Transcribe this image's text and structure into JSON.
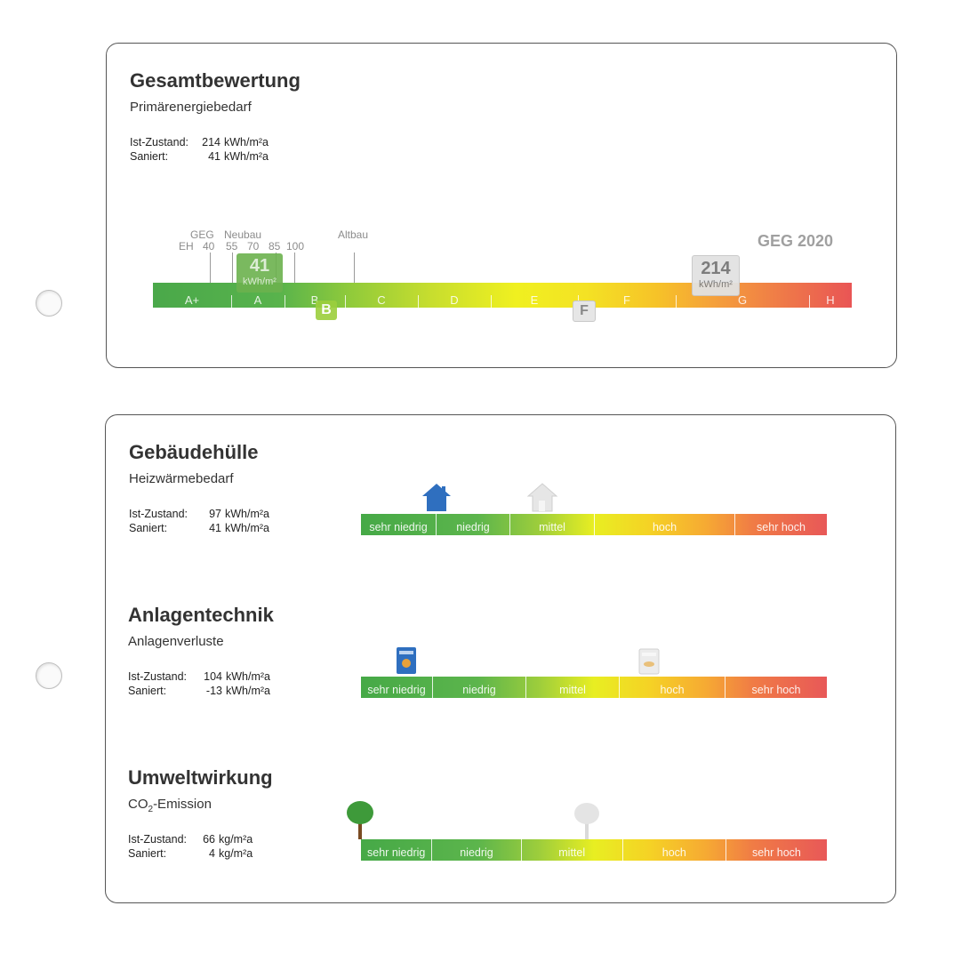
{
  "gesamt": {
    "title": "Gesamtbewertung",
    "subtitle": "Primärenergiebedarf",
    "rows": [
      {
        "label": "Ist-Zustand:",
        "value": "214",
        "unit": "kWh/m²a"
      },
      {
        "label": "Saniert:",
        "value": "41",
        "unit": "kWh/m²a"
      }
    ],
    "scale": {
      "geg_label": "GEG",
      "neubau_label": "Neubau",
      "eh_label": "EH",
      "eh_values": [
        "40",
        "55",
        "70",
        "85",
        "100"
      ],
      "altbau_label": "Altbau",
      "standard_label": "GEG 2020"
    },
    "classes": [
      "A+",
      "A",
      "B",
      "C",
      "D",
      "E",
      "F",
      "G",
      "H"
    ],
    "marker_saniert": {
      "value": "41",
      "unit": "kWh/m²",
      "class": "B"
    },
    "marker_ist": {
      "value": "214",
      "unit": "kWh/m²",
      "class": "F"
    },
    "colors": {
      "good": "#4aa84a",
      "medium": "#f0f020",
      "bad": "#e95555"
    }
  },
  "gebaeudehuelle": {
    "title": "Gebäudehülle",
    "subtitle": "Heizwärmebedarf",
    "rows": [
      {
        "label": "Ist-Zustand:",
        "value": "97",
        "unit": "kWh/m²a"
      },
      {
        "label": "Saniert:",
        "value": "41",
        "unit": "kWh/m²a"
      }
    ],
    "segments": [
      "sehr niedrig",
      "niedrig",
      "mittel",
      "hoch",
      "sehr hoch"
    ],
    "icon_saniert": "house-icon",
    "icon_ist": "house-icon"
  },
  "anlagentechnik": {
    "title": "Anlagentechnik",
    "subtitle": "Anlagenverluste",
    "rows": [
      {
        "label": "Ist-Zustand:",
        "value": "104",
        "unit": "kWh/m²a"
      },
      {
        "label": "Saniert:",
        "value": "-13",
        "unit": "kWh/m²a"
      }
    ],
    "segments": [
      "sehr niedrig",
      "niedrig",
      "mittel",
      "hoch",
      "sehr hoch"
    ],
    "icon_saniert": "boiler-icon",
    "icon_ist": "boiler-icon"
  },
  "umweltwirkung": {
    "title": "Umweltwirkung",
    "subtitle_main": "CO",
    "subtitle_sub": "2",
    "subtitle_rest": "-Emission",
    "rows": [
      {
        "label": "Ist-Zustand:",
        "value": "66",
        "unit": "kg/m²a"
      },
      {
        "label": "Saniert:",
        "value": "4",
        "unit": "kg/m²a"
      }
    ],
    "segments": [
      "sehr niedrig",
      "niedrig",
      "mittel",
      "hoch",
      "sehr hoch"
    ],
    "icon_saniert": "tree-icon",
    "icon_ist": "tree-icon"
  }
}
